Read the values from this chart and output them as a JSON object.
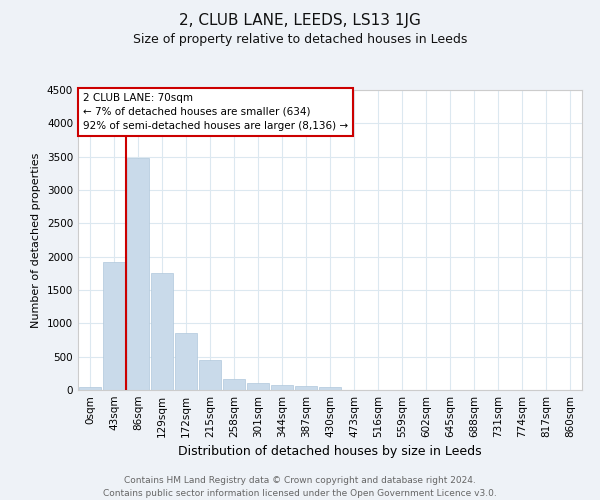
{
  "title": "2, CLUB LANE, LEEDS, LS13 1JG",
  "subtitle": "Size of property relative to detached houses in Leeds",
  "xlabel": "Distribution of detached houses by size in Leeds",
  "ylabel": "Number of detached properties",
  "footer_line1": "Contains HM Land Registry data © Crown copyright and database right 2024.",
  "footer_line2": "Contains public sector information licensed under the Open Government Licence v3.0.",
  "bar_labels": [
    "0sqm",
    "43sqm",
    "86sqm",
    "129sqm",
    "172sqm",
    "215sqm",
    "258sqm",
    "301sqm",
    "344sqm",
    "387sqm",
    "430sqm",
    "473sqm",
    "516sqm",
    "559sqm",
    "602sqm",
    "645sqm",
    "688sqm",
    "731sqm",
    "774sqm",
    "817sqm",
    "860sqm"
  ],
  "bar_values": [
    50,
    1920,
    3480,
    1760,
    860,
    450,
    165,
    105,
    80,
    55,
    40,
    0,
    0,
    0,
    0,
    0,
    0,
    0,
    0,
    0,
    0
  ],
  "bar_color": "#c9daea",
  "bar_edgecolor": "#b0c8dc",
  "ylim": [
    0,
    4500
  ],
  "yticks": [
    0,
    500,
    1000,
    1500,
    2000,
    2500,
    3000,
    3500,
    4000,
    4500
  ],
  "property_line_x": 1.5,
  "annotation_box_text": "2 CLUB LANE: 70sqm\n← 7% of detached houses are smaller (634)\n92% of semi-detached houses are larger (8,136) →",
  "red_line_color": "#cc0000",
  "grid_color": "#dce8f0",
  "bg_color": "#eef2f7",
  "plot_bg_color": "#ffffff",
  "title_fontsize": 11,
  "subtitle_fontsize": 9,
  "ylabel_fontsize": 8,
  "xlabel_fontsize": 9,
  "tick_fontsize": 7.5,
  "footer_fontsize": 6.5,
  "footer_color": "#666666"
}
